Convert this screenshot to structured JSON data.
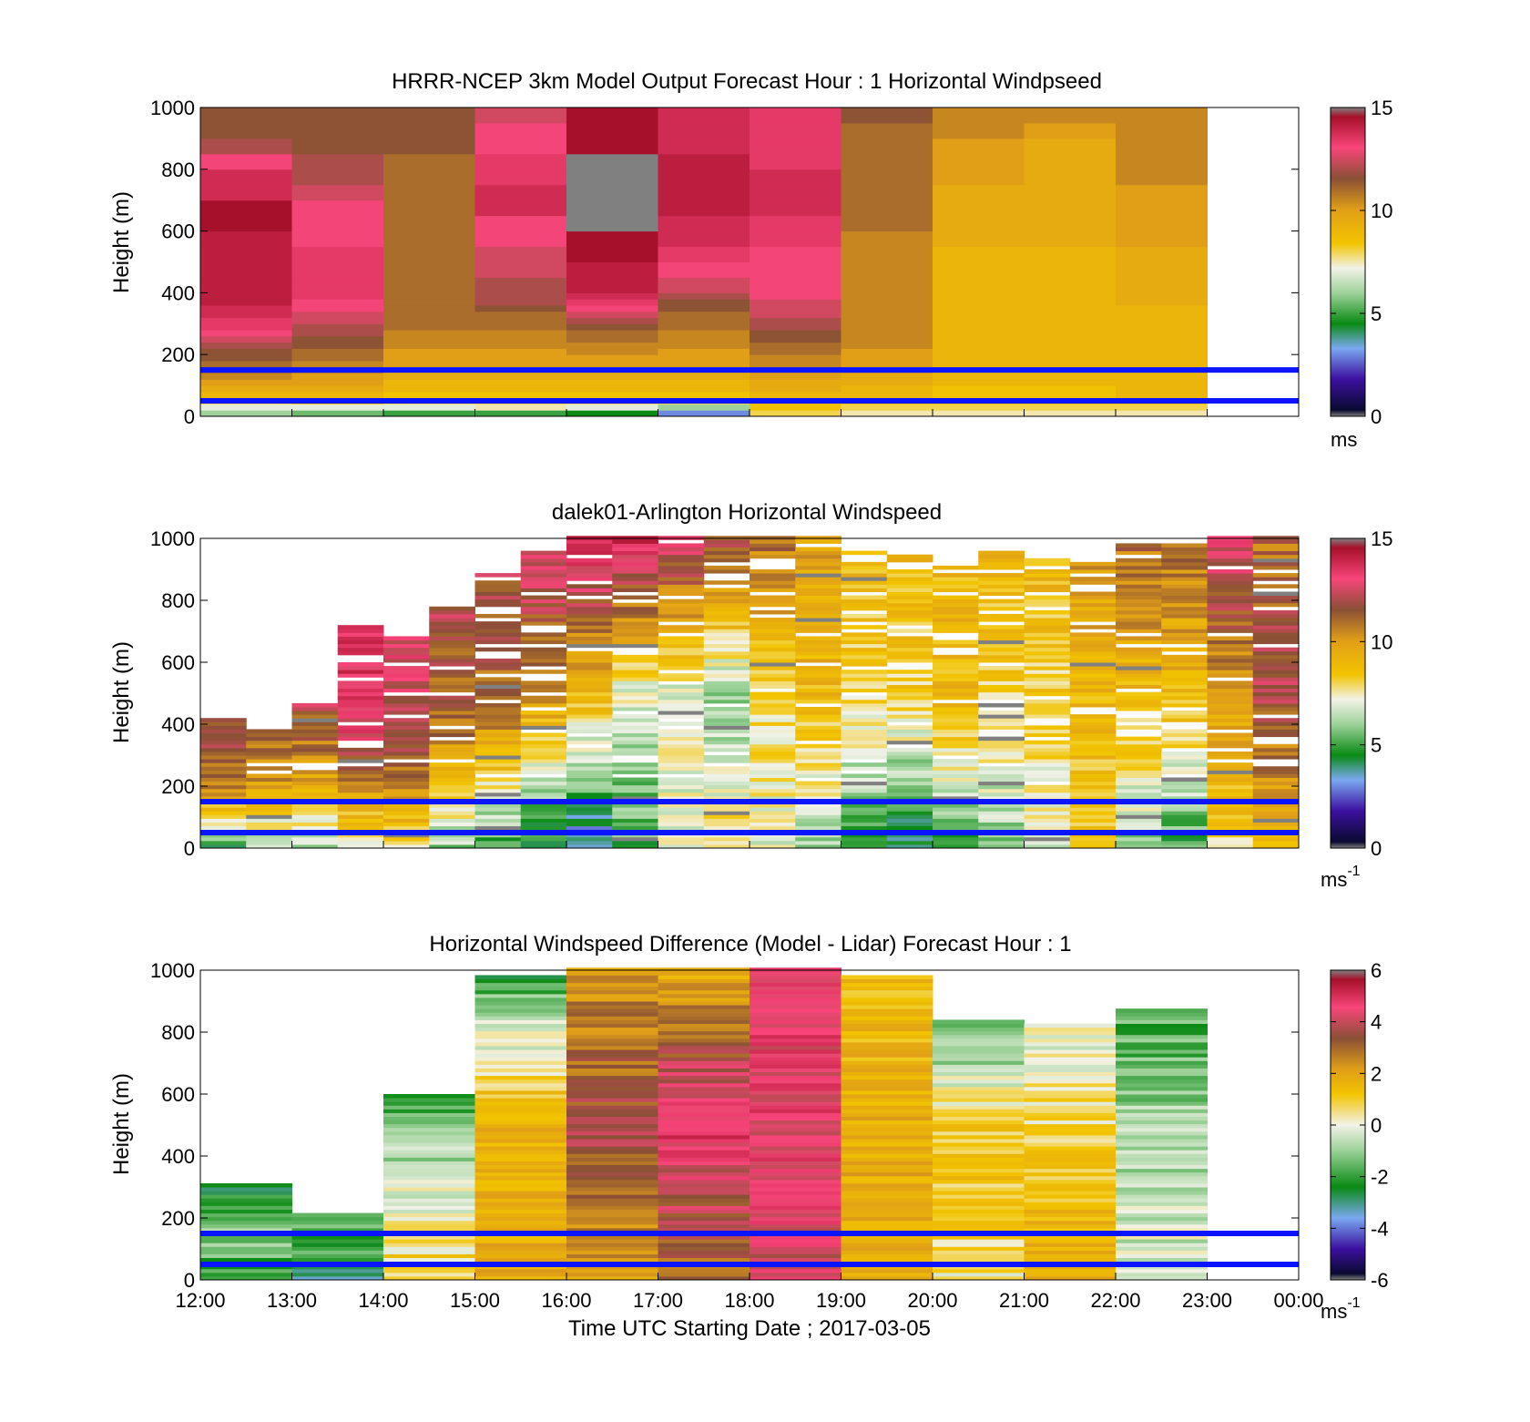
{
  "figure": {
    "xlabel": "Time UTC  Starting Date ; 2017-03-05",
    "x_tick_labels": [
      "12:00",
      "13:00",
      "14:00",
      "15:00",
      "16:00",
      "17:00",
      "18:00",
      "19:00",
      "20:00",
      "21:00",
      "22:00",
      "23:00",
      "00:00"
    ]
  },
  "colors": {
    "marker_lines": "#0a14ff",
    "missing_data": "#808080"
  },
  "chart_data": [
    {
      "type": "heatmap",
      "title": "HRRR-NCEP 3km Model Output   Forecast Hour : 1 Horizontal Windpseed",
      "ylabel": "Height (m)",
      "x_unit": "hour UTC",
      "xlim": [
        12,
        24
      ],
      "ylim": [
        0,
        1000
      ],
      "y_ticks": [
        0,
        200,
        400,
        600,
        800,
        1000
      ],
      "marker_lines_m": [
        50,
        150
      ],
      "colorbar": {
        "range": [
          0,
          15
        ],
        "ticks": [
          0,
          5,
          10,
          15
        ],
        "unit": "ms",
        "unit_exp": ""
      },
      "x_hours": [
        12,
        13,
        14,
        15,
        16,
        17,
        18,
        19,
        20,
        21,
        22
      ],
      "heights_m": [
        20,
        40,
        60,
        80,
        100,
        120,
        140,
        160,
        180,
        200,
        220,
        240,
        260,
        280,
        300,
        320,
        340,
        360,
        380,
        400,
        450,
        500,
        550,
        600,
        650,
        700,
        750,
        800,
        850,
        900,
        950,
        1000
      ],
      "columns": [
        [
          6,
          7,
          8,
          9,
          9.5,
          10,
          10.5,
          11,
          11,
          11.5,
          11.5,
          12,
          12.5,
          13,
          13.5,
          13.5,
          14,
          14,
          14.5,
          14.5,
          14.5,
          14.5,
          14.5,
          14.5,
          15,
          15,
          14,
          14,
          13,
          12,
          11.5,
          11.5
        ],
        [
          5.5,
          7,
          8.5,
          9,
          9.5,
          10,
          10,
          10.5,
          10.5,
          11,
          11,
          11.5,
          11.5,
          12,
          12,
          12.5,
          12.5,
          13,
          13,
          13.5,
          13.5,
          13.5,
          13.5,
          13,
          13,
          13,
          12.5,
          12,
          12,
          11.5,
          11.5,
          11.5
        ],
        [
          5,
          7,
          8,
          8.5,
          9,
          9,
          9.5,
          9.5,
          10,
          10,
          10,
          10.5,
          10.5,
          10.5,
          11,
          11,
          11,
          11,
          11,
          11,
          11,
          11,
          11,
          11,
          11,
          11,
          11,
          11,
          11,
          11.5,
          11.5,
          11.5
        ],
        [
          5,
          7.5,
          8,
          8.5,
          9,
          9,
          9.5,
          9.5,
          10,
          10,
          10,
          10.5,
          10.5,
          10.5,
          11,
          11,
          11,
          11.5,
          12,
          12,
          12,
          12.5,
          12.5,
          13,
          13,
          14,
          14,
          13.5,
          13.5,
          13,
          13,
          12.5
        ],
        [
          4.5,
          7,
          8,
          8.5,
          9,
          9,
          9.5,
          9.5,
          10,
          10,
          10.5,
          10.5,
          11,
          11,
          11.5,
          12,
          12.5,
          13,
          13.5,
          14,
          14.5,
          14.5,
          15,
          15,
          null,
          null,
          null,
          null,
          null,
          15,
          15,
          15
        ],
        [
          3,
          6,
          8,
          8.5,
          9,
          9,
          9.5,
          9.5,
          10,
          10,
          10,
          10.5,
          10.5,
          10.5,
          11,
          11,
          11,
          11.5,
          11.5,
          12,
          12.5,
          13,
          13.5,
          14,
          14,
          14.5,
          14.5,
          14.5,
          14.5,
          14,
          14,
          14
        ],
        [
          8,
          8.5,
          9,
          9,
          9.5,
          9.5,
          10,
          10,
          10.5,
          10.5,
          11,
          11,
          11.5,
          11.5,
          12,
          12,
          12.5,
          12.5,
          12.5,
          13,
          13,
          13,
          13,
          13.5,
          13.5,
          14,
          14,
          14,
          13.5,
          13.5,
          13.5,
          13.5
        ],
        [
          7.5,
          8,
          8.5,
          9,
          9,
          9.5,
          9.5,
          10,
          10,
          10,
          10,
          10.5,
          10.5,
          10.5,
          10.5,
          10.5,
          10.5,
          10.5,
          10.5,
          10.5,
          10.5,
          10.5,
          10.5,
          10.5,
          11,
          11,
          11,
          11,
          11,
          11,
          11,
          11.5
        ],
        [
          7.5,
          8,
          8.5,
          8.5,
          8.5,
          9,
          9,
          9,
          9,
          9,
          9,
          9,
          9,
          9,
          9,
          9,
          9,
          9,
          9,
          9,
          9,
          9,
          9,
          9.5,
          9.5,
          9.5,
          9.5,
          10,
          10,
          10,
          10.5,
          10.5
        ],
        [
          7.5,
          8,
          8.5,
          8.5,
          8.5,
          9,
          9,
          9,
          9,
          9,
          9,
          9,
          9,
          9,
          9,
          9,
          9,
          9,
          9,
          9,
          9,
          9,
          9,
          9.5,
          9.5,
          9.5,
          9.5,
          9.5,
          9.5,
          9.5,
          10,
          10.5
        ],
        [
          7.5,
          8,
          8.5,
          9,
          9,
          9,
          9,
          9,
          9,
          9,
          9,
          9,
          9,
          9,
          9,
          9,
          9,
          9,
          9.5,
          9.5,
          9.5,
          9.5,
          9.5,
          10,
          10,
          10,
          10,
          10.5,
          10.5,
          10.5,
          10.5,
          10.5
        ]
      ]
    },
    {
      "type": "heatmap",
      "title": "dalek01-Arlington  Horizontal Windspeed",
      "ylabel": "Height (m)",
      "x_unit": "hour UTC",
      "xlim": [
        12,
        24
      ],
      "ylim": [
        0,
        1000
      ],
      "y_ticks": [
        0,
        200,
        400,
        600,
        800,
        1000
      ],
      "marker_lines_m": [
        50,
        150
      ],
      "colorbar": {
        "range": [
          0,
          15
        ],
        "ticks": [
          0,
          5,
          10,
          15
        ],
        "unit": "ms",
        "unit_exp": "-1"
      },
      "x_hours": [
        12,
        12.5,
        13,
        13.5,
        14,
        14.5,
        15,
        15.5,
        16,
        16.5,
        17,
        17.5,
        18,
        18.5,
        19,
        19.5,
        20,
        20.5,
        21,
        21.5,
        22,
        22.5,
        23,
        23.5
      ],
      "column_tops_m": [
        420,
        380,
        460,
        720,
        680,
        770,
        880,
        960,
        1000,
        1000,
        1000,
        1000,
        1000,
        1000,
        960,
        940,
        920,
        960,
        940,
        920,
        980,
        980,
        1000,
        1000
      ],
      "low_m": [
        5,
        6,
        6,
        7,
        8,
        6,
        5,
        4,
        3,
        5,
        7,
        8,
        7,
        6,
        5,
        4,
        5,
        6,
        7,
        8,
        6,
        5,
        8,
        9
      ],
      "mid_m": [
        11,
        10,
        10,
        13,
        12,
        11,
        11,
        10,
        9,
        7,
        7,
        6,
        8,
        9,
        8,
        8,
        9,
        8,
        8,
        9,
        9,
        9,
        10,
        12
      ],
      "top_m": [
        12,
        11,
        12,
        14,
        13,
        12,
        12,
        13,
        14,
        14,
        13,
        12,
        11,
        10,
        9,
        9,
        9,
        9,
        9,
        10,
        11,
        11,
        13,
        11
      ]
    },
    {
      "type": "heatmap",
      "title": "Horizontal Windspeed Difference (Model - Lidar) Forecast Hour : 1",
      "ylabel": "Height (m)",
      "x_unit": "hour UTC",
      "xlim": [
        12,
        24
      ],
      "ylim": [
        0,
        1000
      ],
      "y_ticks": [
        0,
        200,
        400,
        600,
        800,
        1000
      ],
      "marker_lines_m": [
        50,
        150
      ],
      "colorbar": {
        "range": [
          -6,
          6
        ],
        "ticks": [
          -6,
          -4,
          -2,
          0,
          2,
          4,
          6
        ],
        "unit": "ms",
        "unit_exp": "-1"
      },
      "x_hours": [
        12,
        13,
        14,
        15,
        16,
        17,
        18,
        19,
        20,
        21,
        22
      ],
      "column_tops_m": [
        310,
        210,
        600,
        980,
        1000,
        1000,
        1000,
        980,
        840,
        820,
        870
      ],
      "low_m": [
        -2,
        -2.5,
        0.5,
        1.5,
        2,
        2.5,
        4,
        1.5,
        0,
        1.5,
        -0.5
      ],
      "mid_m": [
        -1.5,
        -2,
        -0.5,
        1.5,
        3.5,
        5,
        4.5,
        1.5,
        1,
        0.5,
        -1
      ],
      "top_m": [
        -2.5,
        -2,
        -2,
        -2,
        2,
        1.5,
        4.5,
        1,
        -2,
        -0.5,
        -2
      ]
    }
  ]
}
